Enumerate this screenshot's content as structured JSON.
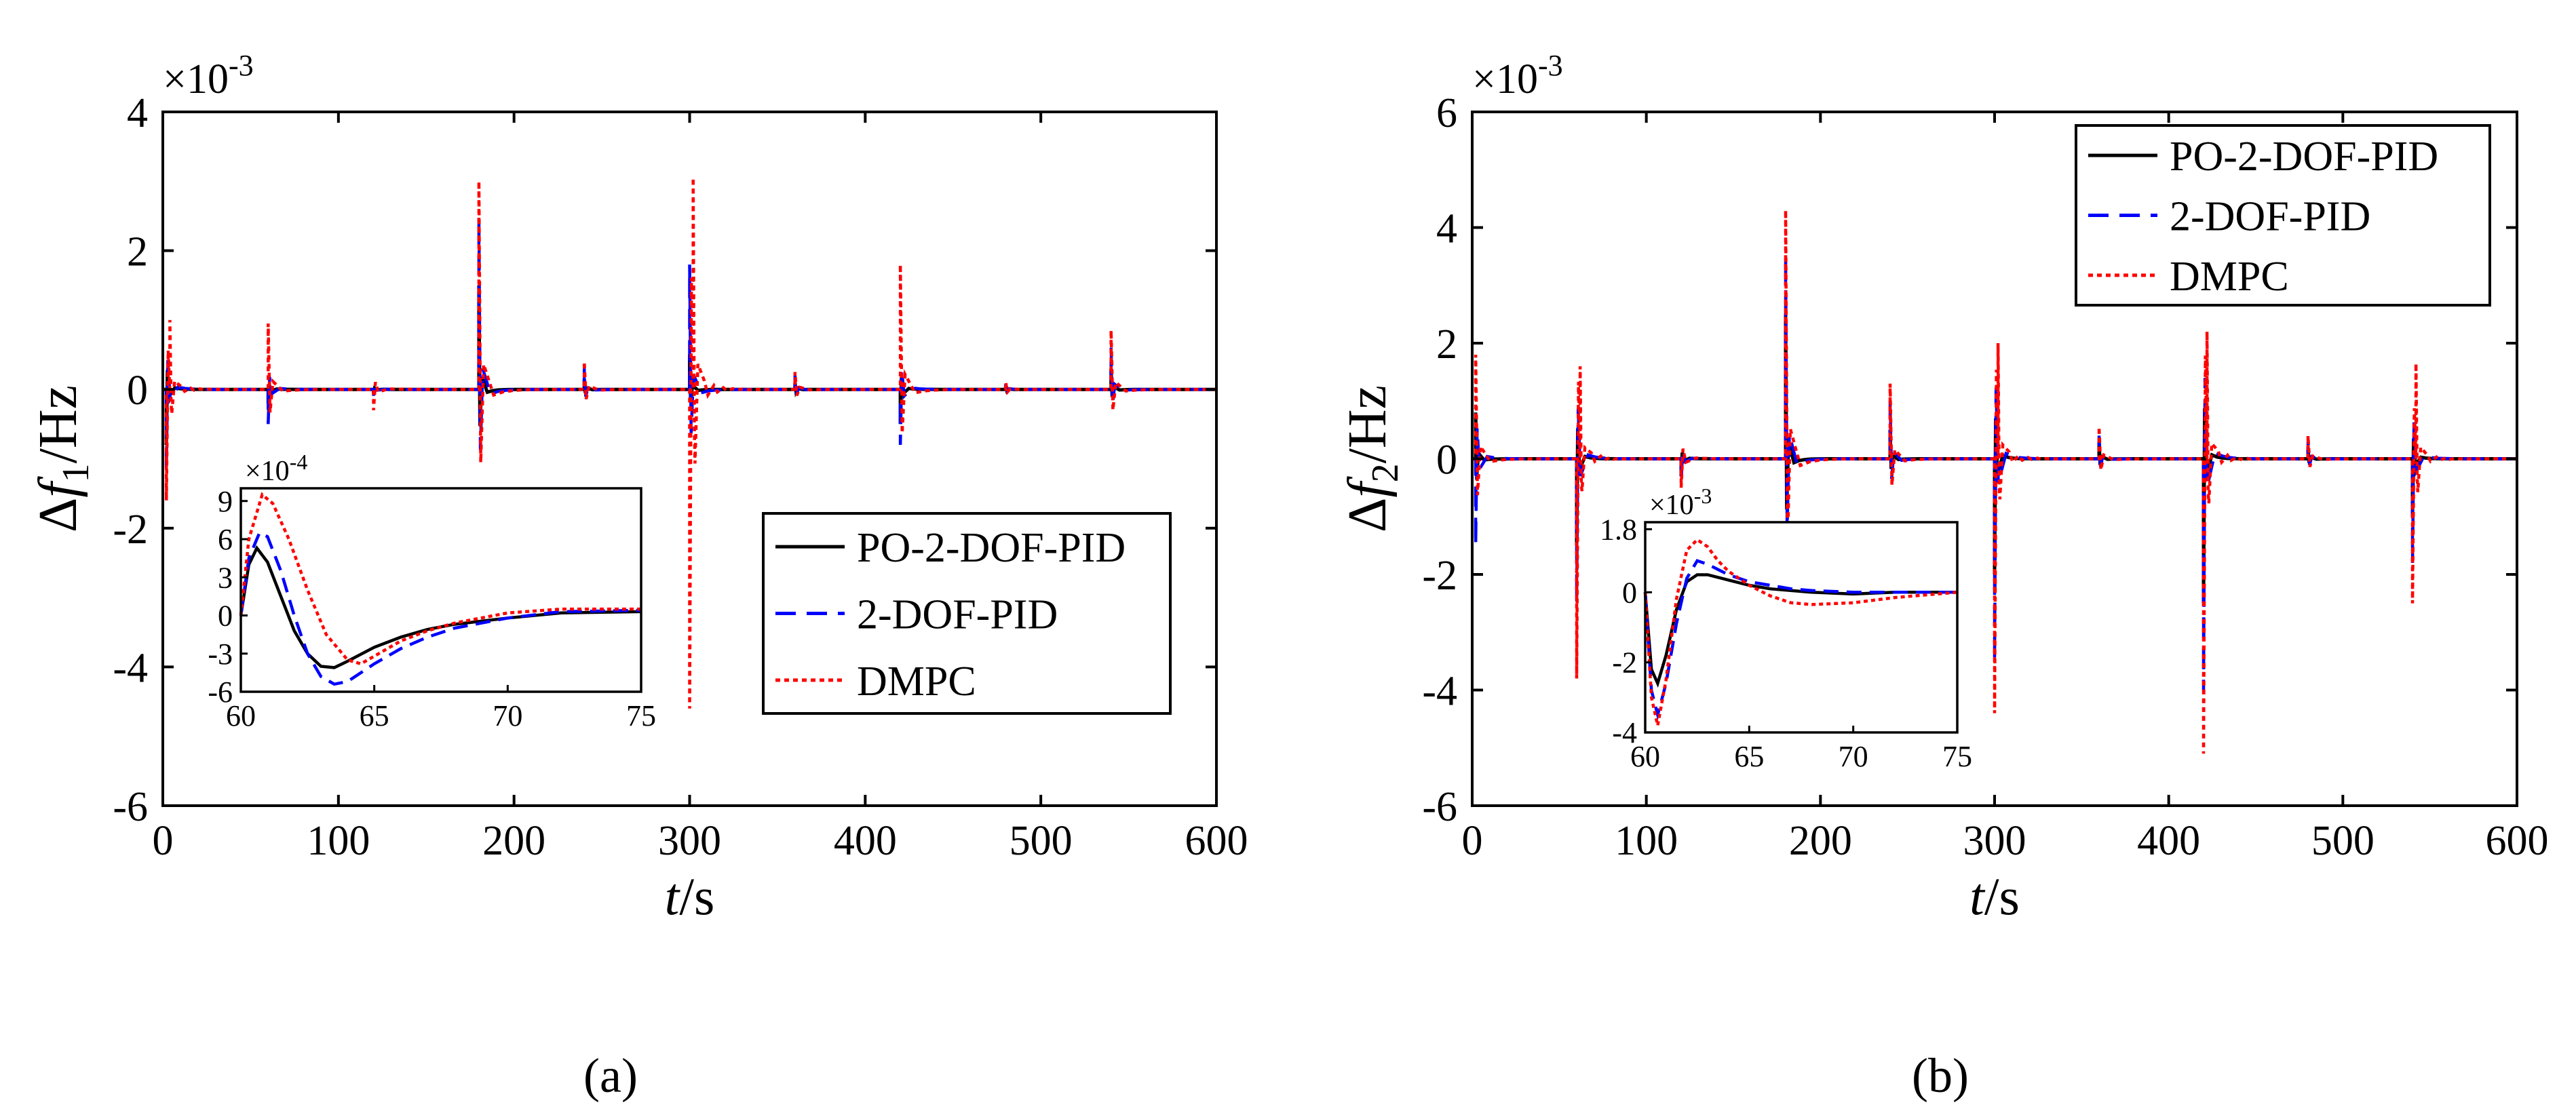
{
  "figure_labels": [
    "(a)",
    "(b)"
  ],
  "colors": {
    "po": "#000000",
    "dof": "#0000ff",
    "dmpc": "#ff0000"
  },
  "chart_data": [
    {
      "id": "a",
      "type": "line",
      "panel_label": "(a)",
      "xlabel_italic": "t",
      "xlabel_rest": "/s",
      "ylabel_delta": "Δ",
      "ylabel_italic": "f",
      "ylabel_sub": "1",
      "ylabel_unit": "/Hz",
      "exponent": "×10-3",
      "xlim": [
        0,
        600
      ],
      "ylim": [
        -6,
        4
      ],
      "xticks": [
        0,
        100,
        200,
        300,
        400,
        500,
        600
      ],
      "yticks": [
        4,
        2,
        0,
        -2,
        -4,
        -6
      ],
      "grid": false,
      "legend_position": "center-right",
      "series": [
        {
          "name": "PO-2-DOF-PID",
          "style": "solid",
          "spikes": [
            [
              2,
              -0.8
            ],
            [
              60,
              -0.2
            ],
            [
              120,
              -0.05
            ],
            [
              180,
              1.5
            ],
            [
              240,
              0.15
            ],
            [
              300,
              0.5
            ],
            [
              360,
              0.1
            ],
            [
              420,
              -0.5
            ],
            [
              480,
              0.05
            ],
            [
              540,
              0.3
            ]
          ]
        },
        {
          "name": "2-DOF-PID",
          "style": "dashed",
          "spikes": [
            [
              2,
              -1.2
            ],
            [
              60,
              -0.5
            ],
            [
              120,
              -0.1
            ],
            [
              180,
              2.5
            ],
            [
              240,
              0.3
            ],
            [
              300,
              1.8
            ],
            [
              360,
              0.2
            ],
            [
              420,
              -0.8
            ],
            [
              480,
              0.08
            ],
            [
              540,
              0.6
            ]
          ]
        },
        {
          "name": "DMPC",
          "style": "dotted",
          "spikes": [
            [
              2,
              -1.6
            ],
            [
              4,
              1.0
            ],
            [
              60,
              0.95
            ],
            [
              120,
              -0.3
            ],
            [
              180,
              3.0
            ],
            [
              240,
              0.4
            ],
            [
              302,
              3.05
            ],
            [
              300,
              -4.6
            ],
            [
              360,
              0.25
            ],
            [
              420,
              1.8
            ],
            [
              480,
              0.1
            ],
            [
              540,
              0.85
            ]
          ]
        }
      ],
      "inset": {
        "xlim": [
          60,
          75
        ],
        "ylim": [
          -6,
          10
        ],
        "xticks": [
          60,
          65,
          70,
          75
        ],
        "yticks": [
          9,
          6,
          3,
          0,
          -3,
          -6
        ],
        "exponent": "×10-4",
        "series": [
          {
            "name": "PO-2-DOF-PID",
            "x": [
              60,
              60.3,
              60.6,
              61,
              61.5,
              62,
              62.5,
              63,
              63.5,
              64,
              65,
              66,
              67,
              68,
              70,
              72,
              75
            ],
            "y": [
              0,
              4,
              5.3,
              4.2,
              1.5,
              -1.2,
              -3,
              -4,
              -4.1,
              -3.6,
              -2.5,
              -1.7,
              -1.1,
              -0.7,
              -0.2,
              0.2,
              0.3
            ]
          },
          {
            "name": "2-DOF-PID",
            "x": [
              60,
              60.3,
              60.7,
              61,
              61.5,
              62,
              62.5,
              63,
              63.5,
              64,
              65,
              66,
              67,
              68,
              70,
              72,
              75
            ],
            "y": [
              0,
              4.5,
              6.5,
              6.2,
              3.5,
              0,
              -3,
              -4.8,
              -5.4,
              -5.2,
              -3.8,
              -2.6,
              -1.7,
              -1,
              -0.2,
              0.3,
              0.4
            ]
          },
          {
            "name": "DMPC",
            "x": [
              60,
              60.3,
              60.8,
              61.2,
              61.8,
              62.5,
              63.2,
              64,
              64.5,
              65,
              66,
              67,
              68,
              70,
              72,
              75
            ],
            "y": [
              0,
              6,
              9.5,
              8.8,
              6,
              2,
              -1.5,
              -3.5,
              -3.8,
              -3.2,
              -2,
              -1.2,
              -0.6,
              0.2,
              0.5,
              0.5
            ]
          }
        ]
      }
    },
    {
      "id": "b",
      "type": "line",
      "panel_label": "(b)",
      "xlabel_italic": "t",
      "xlabel_rest": "/s",
      "ylabel_delta": "Δ",
      "ylabel_italic": "f",
      "ylabel_sub": "2",
      "ylabel_unit": "/Hz",
      "exponent": "×10-3",
      "xlim": [
        0,
        600
      ],
      "ylim": [
        -6,
        6
      ],
      "xticks": [
        0,
        100,
        200,
        300,
        400,
        500,
        600
      ],
      "yticks": [
        6,
        4,
        2,
        0,
        -2,
        -4,
        -6
      ],
      "grid": false,
      "legend_position": "top-right",
      "series": [
        {
          "name": "PO-2-DOF-PID",
          "style": "solid",
          "spikes": [
            [
              2,
              0.8
            ],
            [
              60,
              -1.5
            ],
            [
              120,
              -0.3
            ],
            [
              180,
              2.5
            ],
            [
              240,
              0.5
            ],
            [
              300,
              -2
            ],
            [
              360,
              0.3
            ],
            [
              420,
              -2.5
            ],
            [
              480,
              0.2
            ],
            [
              540,
              -1
            ]
          ]
        },
        {
          "name": "2-DOF-PID",
          "style": "dashed",
          "spikes": [
            [
              2,
              -1.5
            ],
            [
              60,
              -2.5
            ],
            [
              120,
              -0.4
            ],
            [
              180,
              3.5
            ],
            [
              240,
              1.0
            ],
            [
              300,
              -3.5
            ],
            [
              360,
              0.4
            ],
            [
              420,
              -4
            ],
            [
              480,
              0.3
            ],
            [
              540,
              -1.8
            ]
          ]
        },
        {
          "name": "DMPC",
          "style": "dotted",
          "spikes": [
            [
              2,
              1.8
            ],
            [
              60,
              -3.8
            ],
            [
              62,
              1.6
            ],
            [
              120,
              -0.5
            ],
            [
              180,
              4.3
            ],
            [
              240,
              1.3
            ],
            [
              300,
              -4.4
            ],
            [
              302,
              2.0
            ],
            [
              360,
              0.55
            ],
            [
              420,
              -5.1
            ],
            [
              422,
              2.2
            ],
            [
              480,
              0.4
            ],
            [
              540,
              -2.5
            ],
            [
              542,
              1.65
            ]
          ]
        }
      ],
      "inset": {
        "xlim": [
          60,
          75
        ],
        "ylim": [
          -4,
          2
        ],
        "xticks": [
          60,
          65,
          70,
          75
        ],
        "yticks": [
          1.8,
          0,
          -2,
          -4
        ],
        "exponent": "×10-3",
        "series": [
          {
            "name": "PO-2-DOF-PID",
            "x": [
              60,
              60.3,
              60.6,
              61,
              61.5,
              62,
              62.5,
              63,
              64,
              65,
              66,
              67,
              68,
              70,
              72,
              75
            ],
            "y": [
              0,
              -2.2,
              -2.6,
              -1.8,
              -0.5,
              0.3,
              0.5,
              0.5,
              0.35,
              0.2,
              0.1,
              0.05,
              0,
              -0.05,
              0,
              0
            ]
          },
          {
            "name": "2-DOF-PID",
            "x": [
              60,
              60.3,
              60.6,
              61,
              61.5,
              62,
              62.5,
              63,
              64,
              65,
              66,
              67,
              68,
              70,
              72,
              75
            ],
            "y": [
              0,
              -2.8,
              -3.5,
              -2.6,
              -0.9,
              0.4,
              0.9,
              0.8,
              0.5,
              0.3,
              0.2,
              0.1,
              0.05,
              0,
              0,
              0
            ]
          },
          {
            "name": "DMPC",
            "x": [
              60,
              60.3,
              60.6,
              61,
              61.5,
              62,
              62.5,
              63,
              63.5,
              64,
              65,
              66,
              67,
              68,
              70,
              72,
              75
            ],
            "y": [
              0,
              -3,
              -3.8,
              -2.5,
              -0.2,
              1.2,
              1.5,
              1.3,
              0.9,
              0.6,
              0.2,
              -0.1,
              -0.3,
              -0.35,
              -0.3,
              -0.15,
              0
            ]
          }
        ]
      }
    }
  ]
}
